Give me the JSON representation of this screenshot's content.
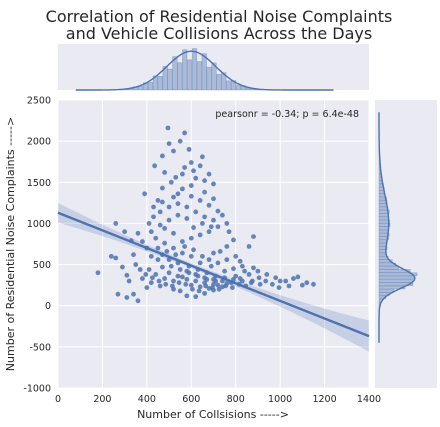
{
  "chart_data": {
    "type": "scatter",
    "title_lines": [
      "Correlation of Residential Noise Complaints",
      "and Vehicle Collisions Across the Days"
    ],
    "xlabel": "Number of Collsisions ----->",
    "ylabel": "Number of Residential Noise Complaints ----->",
    "xlim": [
      0,
      1400
    ],
    "ylim": [
      -1000,
      2500
    ],
    "xticks": [
      "0",
      "200",
      "400",
      "600",
      "800",
      "1000",
      "1200",
      "1400"
    ],
    "yticks": [
      "-1000",
      "-500",
      "0",
      "500",
      "1000",
      "1500",
      "2000",
      "2500"
    ],
    "annotation": "pearsonr = -0.34; p = 6.4e-48",
    "regression": {
      "x": [
        0,
        1400
      ],
      "y": [
        1130,
        -370
      ]
    },
    "grid": true,
    "marginals": {
      "top": "histogram and kde of number of collisions, peak near 600",
      "right": "histogram and kde of residential noise complaints, peak near 330"
    },
    "colors": {
      "points": "#4c72b0",
      "line": "#4c72b0",
      "background": "#eaeaf2",
      "grid": "#ffffff"
    },
    "points": [
      [
        435,
        1700
      ],
      [
        495,
        2160
      ],
      [
        500,
        1970
      ],
      [
        520,
        1880
      ],
      [
        570,
        2100
      ],
      [
        600,
        1740
      ],
      [
        650,
        1810
      ],
      [
        560,
        1600
      ],
      [
        510,
        1500
      ],
      [
        620,
        1550
      ],
      [
        470,
        1430
      ],
      [
        540,
        1360
      ],
      [
        600,
        1330
      ],
      [
        660,
        1380
      ],
      [
        700,
        1300
      ],
      [
        450,
        1280
      ],
      [
        390,
        1360
      ],
      [
        260,
        1000
      ],
      [
        300,
        900
      ],
      [
        330,
        790
      ],
      [
        340,
        620
      ],
      [
        240,
        600
      ],
      [
        260,
        580
      ],
      [
        180,
        400
      ],
      [
        290,
        470
      ],
      [
        310,
        370
      ],
      [
        320,
        300
      ],
      [
        270,
        140
      ],
      [
        310,
        100
      ],
      [
        360,
        60
      ],
      [
        340,
        140
      ],
      [
        400,
        220
      ],
      [
        380,
        330
      ],
      [
        420,
        280
      ],
      [
        460,
        240
      ],
      [
        520,
        200
      ],
      [
        550,
        180
      ],
      [
        580,
        120
      ],
      [
        620,
        110
      ],
      [
        660,
        150
      ],
      [
        700,
        190
      ],
      [
        740,
        230
      ],
      [
        780,
        280
      ],
      [
        820,
        330
      ],
      [
        860,
        380
      ],
      [
        900,
        420
      ],
      [
        940,
        380
      ],
      [
        980,
        340
      ],
      [
        1000,
        300
      ],
      [
        1040,
        240
      ],
      [
        1080,
        350
      ],
      [
        1120,
        280
      ],
      [
        1150,
        260
      ],
      [
        860,
        720
      ],
      [
        880,
        840
      ],
      [
        790,
        800
      ],
      [
        760,
        720
      ],
      [
        730,
        660
      ],
      [
        700,
        640
      ],
      [
        680,
        560
      ],
      [
        640,
        520
      ],
      [
        600,
        600
      ],
      [
        560,
        640
      ],
      [
        520,
        700
      ],
      [
        480,
        760
      ],
      [
        440,
        820
      ],
      [
        420,
        900
      ],
      [
        410,
        1000
      ],
      [
        430,
        1080
      ],
      [
        460,
        1140
      ],
      [
        500,
        1200
      ],
      [
        540,
        1240
      ],
      [
        580,
        1200
      ],
      [
        620,
        1140
      ],
      [
        660,
        1080
      ],
      [
        700,
        1040
      ],
      [
        720,
        960
      ],
      [
        680,
        900
      ],
      [
        640,
        860
      ],
      [
        600,
        820
      ],
      [
        560,
        780
      ],
      [
        520,
        880
      ],
      [
        480,
        940
      ],
      [
        450,
        700
      ],
      [
        470,
        620
      ],
      [
        500,
        560
      ],
      [
        540,
        520
      ],
      [
        590,
        480
      ],
      [
        630,
        440
      ],
      [
        670,
        400
      ],
      [
        710,
        360
      ],
      [
        750,
        340
      ],
      [
        790,
        320
      ],
      [
        830,
        300
      ],
      [
        870,
        280
      ],
      [
        910,
        260
      ],
      [
        500,
        400
      ],
      [
        540,
        360
      ],
      [
        580,
        320
      ],
      [
        620,
        300
      ],
      [
        660,
        280
      ],
      [
        700,
        260
      ],
      [
        740,
        300
      ],
      [
        580,
        420
      ],
      [
        620,
        380
      ],
      [
        660,
        340
      ],
      [
        700,
        320
      ],
      [
        560,
        350
      ],
      [
        600,
        250
      ],
      [
        640,
        230
      ],
      [
        680,
        210
      ],
      [
        720,
        250
      ],
      [
        760,
        270
      ],
      [
        800,
        360
      ],
      [
        840,
        420
      ],
      [
        880,
        460
      ],
      [
        520,
        300
      ],
      [
        480,
        330
      ],
      [
        440,
        380
      ],
      [
        410,
        440
      ],
      [
        470,
        470
      ],
      [
        510,
        480
      ],
      [
        550,
        440
      ],
      [
        590,
        400
      ],
      [
        630,
        360
      ],
      [
        670,
        320
      ],
      [
        710,
        300
      ],
      [
        750,
        420
      ],
      [
        790,
        450
      ],
      [
        830,
        480
      ],
      [
        610,
        950
      ],
      [
        650,
        1000
      ],
      [
        690,
        960
      ],
      [
        580,
        1060
      ],
      [
        540,
        1100
      ],
      [
        500,
        1040
      ],
      [
        460,
        980
      ],
      [
        430,
        1200
      ],
      [
        470,
        1260
      ],
      [
        520,
        1320
      ],
      [
        560,
        1420
      ],
      [
        600,
        1460
      ],
      [
        640,
        1280
      ],
      [
        680,
        1220
      ],
      [
        720,
        1150
      ],
      [
        740,
        1100
      ],
      [
        760,
        1000
      ],
      [
        770,
        900
      ],
      [
        800,
        600
      ],
      [
        820,
        540
      ],
      [
        760,
        560
      ],
      [
        720,
        520
      ],
      [
        690,
        480
      ],
      [
        650,
        600
      ],
      [
        610,
        680
      ],
      [
        570,
        720
      ],
      [
        530,
        620
      ],
      [
        490,
        660
      ],
      [
        450,
        560
      ],
      [
        420,
        600
      ],
      [
        400,
        700
      ],
      [
        380,
        780
      ],
      [
        360,
        880
      ],
      [
        350,
        500
      ],
      [
        370,
        440
      ],
      [
        395,
        380
      ],
      [
        425,
        340
      ],
      [
        455,
        300
      ],
      [
        485,
        260
      ],
      [
        515,
        240
      ],
      [
        545,
        280
      ],
      [
        575,
        260
      ],
      [
        605,
        200
      ],
      [
        635,
        180
      ],
      [
        665,
        240
      ],
      [
        695,
        220
      ],
      [
        725,
        200
      ],
      [
        755,
        240
      ],
      [
        785,
        220
      ],
      [
        815,
        260
      ],
      [
        845,
        240
      ],
      [
        875,
        300
      ],
      [
        905,
        340
      ],
      [
        935,
        300
      ],
      [
        965,
        260
      ],
      [
        995,
        220
      ],
      [
        1025,
        300
      ],
      [
        1060,
        330
      ],
      [
        1100,
        250
      ],
      [
        530,
        1560
      ],
      [
        570,
        1680
      ],
      [
        480,
        1620
      ],
      [
        610,
        1640
      ],
      [
        590,
        1900
      ],
      [
        550,
        2000
      ],
      [
        470,
        1820
      ],
      [
        640,
        1700
      ],
      [
        680,
        1600
      ],
      [
        700,
        1480
      ],
      [
        660,
        1520
      ]
    ]
  }
}
